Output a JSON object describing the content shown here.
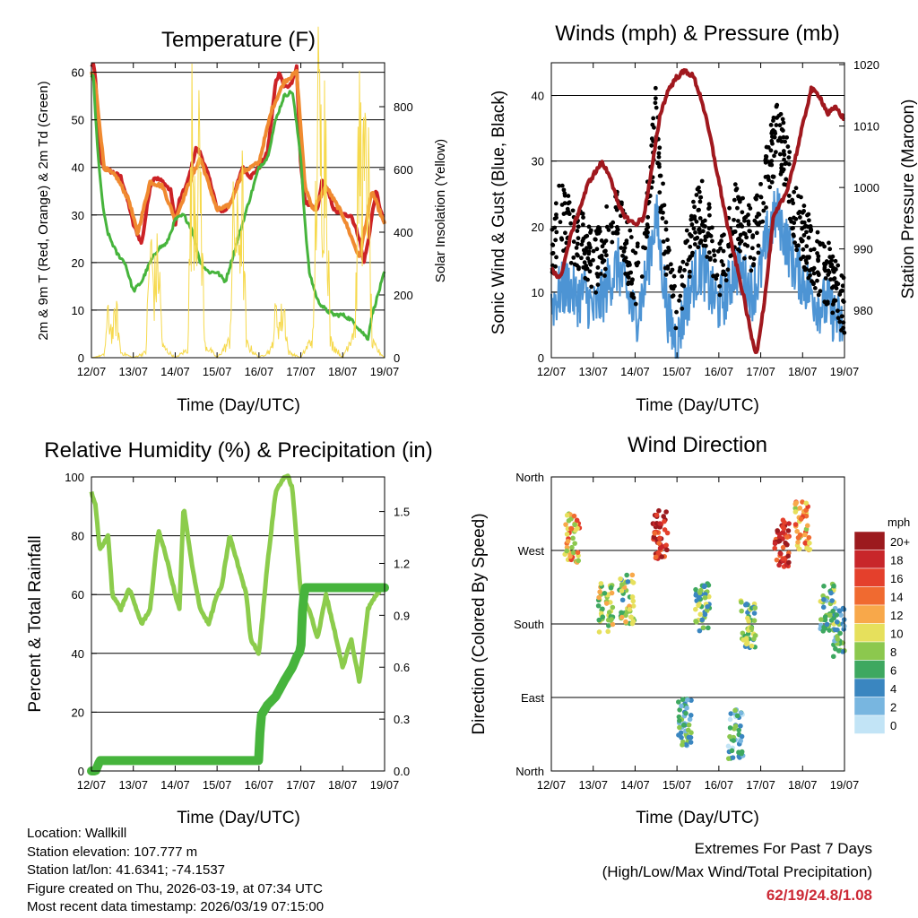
{
  "days": [
    "12/07",
    "13/07",
    "14/07",
    "15/07",
    "16/07",
    "17/07",
    "18/07",
    "19/07"
  ],
  "xlabel": "Time (Day/UTC)",
  "colors": {
    "red": "#cc2226",
    "orange": "#f08a30",
    "green": "#46b43c",
    "yellow": "#f6d94c",
    "blue": "#4d94d4",
    "black": "#000000",
    "maroon": "#a0181e",
    "lightgreen": "#8ccc4c"
  },
  "charts": [
    {
      "id": "temperature",
      "type": "line",
      "title": "Temperature (F)",
      "ylabel": "2m & 9m T (Red, Orange) & 2m Td (Green)",
      "y2label": "Solar Insolation (Yellow)",
      "ylim": [
        0,
        62
      ],
      "yticks": [
        0,
        10,
        20,
        30,
        40,
        50,
        60
      ],
      "y2lim": [
        0,
        940
      ],
      "y2ticks": [
        0,
        200,
        400,
        600,
        800
      ],
      "series": [
        {
          "name": "2m T",
          "color": "red",
          "x": [
            0,
            0.04,
            0.1,
            0.2,
            0.3,
            0.5,
            0.7,
            0.8,
            0.9,
            1.0,
            1.2,
            1.4,
            1.5,
            1.7,
            1.9,
            2.0,
            2.1,
            2.3,
            2.5,
            2.6,
            2.8,
            2.9,
            3.0,
            3.2,
            3.4,
            3.6,
            3.8,
            4.0,
            4.2,
            4.3,
            4.4,
            4.5,
            4.6,
            4.7,
            4.8,
            4.9,
            5.0,
            5.1,
            5.2,
            5.4,
            5.5,
            5.6,
            5.8,
            6.0,
            6.2,
            6.4,
            6.5,
            6.6,
            6.7,
            6.8,
            6.9,
            7.0
          ],
          "y": [
            61,
            62,
            58,
            42,
            40,
            39,
            38,
            35,
            32,
            28,
            24,
            36,
            38,
            37,
            35,
            28,
            33,
            37,
            44,
            43,
            38,
            35,
            31,
            31,
            34,
            40,
            38,
            40,
            43,
            50,
            58,
            60,
            57,
            57,
            58,
            61,
            40,
            33,
            32,
            31,
            37,
            36,
            31,
            30,
            30,
            25,
            20,
            24,
            30,
            35,
            31,
            28
          ]
        },
        {
          "name": "9m T",
          "color": "orange",
          "x": [
            0,
            0.1,
            0.3,
            0.6,
            0.9,
            1.1,
            1.4,
            1.7,
            2.0,
            2.3,
            2.6,
            3.0,
            3.3,
            3.6,
            4.0,
            4.3,
            4.6,
            4.9,
            5.1,
            5.3,
            5.6,
            6.0,
            6.4,
            6.7,
            7.0
          ],
          "y": [
            60,
            57,
            40,
            38,
            33,
            26,
            37,
            36,
            29,
            36,
            42,
            31,
            32,
            39,
            41,
            52,
            58,
            60,
            36,
            31,
            36,
            30,
            21,
            35,
            28
          ]
        },
        {
          "name": "2m Td",
          "color": "green",
          "x": [
            0,
            0.04,
            0.1,
            0.2,
            0.3,
            0.4,
            0.6,
            0.8,
            1.0,
            1.2,
            1.4,
            1.6,
            1.8,
            2.0,
            2.2,
            2.4,
            2.6,
            2.8,
            3.0,
            3.2,
            3.4,
            3.6,
            3.8,
            4.0,
            4.2,
            4.4,
            4.6,
            4.8,
            5.0,
            5.1,
            5.2,
            5.4,
            5.6,
            5.8,
            6.0,
            6.2,
            6.4,
            6.6,
            6.7,
            6.8,
            7.0
          ],
          "y": [
            59,
            60,
            50,
            38,
            30,
            26,
            22,
            20,
            14,
            16,
            20,
            23,
            24,
            29,
            30,
            27,
            20,
            18,
            18,
            16,
            22,
            28,
            34,
            40,
            42,
            50,
            55,
            56,
            42,
            28,
            18,
            12,
            10,
            9,
            9,
            8,
            6,
            4,
            9,
            12,
            18
          ]
        },
        {
          "name": "Solar Insolation",
          "color": "yellow",
          "axis": "y2",
          "x": [
            0,
            0.3,
            0.4,
            0.5,
            0.6,
            0.7,
            1.0,
            1.3,
            1.4,
            1.5,
            1.6,
            1.7,
            2.0,
            2.3,
            2.4,
            2.5,
            2.6,
            2.7,
            3.0,
            3.3,
            3.4,
            3.5,
            3.6,
            3.7,
            4.0,
            4.3,
            4.4,
            4.5,
            4.6,
            4.7,
            5.0,
            5.3,
            5.4,
            5.5,
            5.6,
            5.7,
            6.0,
            6.3,
            6.4,
            6.5,
            6.6,
            6.7,
            7.0
          ],
          "y": [
            0,
            10,
            150,
            90,
            160,
            20,
            0,
            20,
            400,
            250,
            350,
            40,
            0,
            30,
            760,
            620,
            700,
            50,
            0,
            60,
            520,
            400,
            560,
            50,
            0,
            30,
            160,
            120,
            180,
            20,
            0,
            80,
            900,
            700,
            850,
            60,
            0,
            120,
            800,
            620,
            700,
            50,
            0
          ]
        }
      ]
    },
    {
      "id": "winds",
      "type": "line+scatter",
      "title": "Winds (mph) & Pressure (mb)",
      "ylabel": "Sonic Wind & Gust (Blue, Black)",
      "y2label": "Station Pressure (Maroon)",
      "ylim": [
        0,
        45
      ],
      "yticks": [
        0,
        10,
        20,
        30,
        40
      ],
      "y2lim": [
        972.3,
        1020.3
      ],
      "y2ticks": [
        980,
        990,
        1000,
        1010,
        1020
      ],
      "series": [
        {
          "name": "Sonic Wind",
          "color": "blue",
          "x": [
            0,
            0.2,
            0.4,
            0.6,
            0.8,
            1.0,
            1.2,
            1.4,
            1.6,
            1.8,
            2.0,
            2.2,
            2.4,
            2.5,
            2.6,
            2.8,
            3.0,
            3.2,
            3.4,
            3.6,
            3.8,
            4.0,
            4.2,
            4.4,
            4.6,
            4.8,
            5.0,
            5.2,
            5.4,
            5.6,
            5.8,
            6.0,
            6.2,
            6.4,
            6.6,
            6.8,
            7.0
          ],
          "y": [
            8,
            10,
            11,
            9,
            10,
            7,
            9,
            12,
            14,
            10,
            6,
            10,
            18,
            22,
            16,
            6,
            2,
            8,
            12,
            14,
            10,
            8,
            10,
            14,
            12,
            10,
            13,
            20,
            22,
            18,
            14,
            12,
            10,
            8,
            8,
            6,
            4
          ]
        },
        {
          "name": "Gust",
          "color": "black",
          "x": [
            0,
            0.2,
            0.4,
            0.6,
            0.8,
            1.0,
            1.2,
            1.4,
            1.6,
            1.8,
            2.0,
            2.2,
            2.4,
            2.5,
            2.6,
            2.8,
            3.0,
            3.2,
            3.4,
            3.6,
            3.8,
            4.0,
            4.2,
            4.4,
            4.6,
            4.8,
            5.0,
            5.2,
            5.4,
            5.6,
            5.8,
            6.0,
            6.2,
            6.4,
            6.6,
            6.8,
            7.0
          ],
          "y": [
            15,
            22,
            20,
            18,
            17,
            14,
            16,
            20,
            22,
            17,
            11,
            17,
            30,
            38,
            27,
            12,
            6,
            14,
            20,
            22,
            18,
            14,
            17,
            22,
            20,
            18,
            22,
            30,
            34,
            30,
            22,
            19,
            16,
            14,
            13,
            11,
            8
          ]
        },
        {
          "name": "Station Pressure",
          "color": "maroon",
          "axis": "y2",
          "x": [
            0,
            0.2,
            0.5,
            0.9,
            1.2,
            1.4,
            1.6,
            1.8,
            2.0,
            2.2,
            2.4,
            2.6,
            2.8,
            3.0,
            3.2,
            3.4,
            3.6,
            3.8,
            4.0,
            4.2,
            4.4,
            4.6,
            4.8,
            4.9,
            5.1,
            5.3,
            5.6,
            5.8,
            6.0,
            6.2,
            6.4,
            6.6,
            6.8,
            7.0
          ],
          "y": [
            987,
            985,
            993,
            1001,
            1004,
            1002,
            997,
            995,
            994,
            995,
            1003,
            1012,
            1016,
            1018,
            1019,
            1018,
            1014,
            1008,
            1001,
            994,
            988,
            982,
            975,
            973,
            982,
            995,
            999,
            1004,
            1010,
            1016,
            1015,
            1012,
            1013,
            1011
          ]
        }
      ]
    },
    {
      "id": "humidity",
      "type": "line",
      "title": "Relative Humidity (%) & Precipitation (in)",
      "ylabel": "Percent & Total Rainfall",
      "ylim": [
        0,
        100
      ],
      "yticks": [
        0,
        20,
        40,
        60,
        80,
        100
      ],
      "y2lim": [
        0,
        1.7
      ],
      "y2ticks": [
        0.0,
        0.3,
        0.6,
        0.9,
        1.2,
        1.5
      ],
      "series": [
        {
          "name": "Relative Humidity",
          "color": "lightgreen",
          "x": [
            0,
            0.1,
            0.2,
            0.4,
            0.5,
            0.7,
            0.9,
            1.0,
            1.2,
            1.4,
            1.6,
            1.8,
            2.0,
            2.1,
            2.2,
            2.4,
            2.6,
            2.8,
            3.0,
            3.1,
            3.3,
            3.5,
            3.7,
            3.8,
            4.0,
            4.2,
            4.4,
            4.6,
            4.7,
            4.8,
            5.0,
            5.2,
            5.4,
            5.6,
            5.8,
            6.0,
            6.2,
            6.4,
            6.6,
            6.8,
            7.0
          ],
          "y": [
            95,
            90,
            75,
            80,
            60,
            55,
            62,
            58,
            50,
            55,
            82,
            72,
            60,
            55,
            90,
            70,
            55,
            50,
            60,
            62,
            80,
            70,
            60,
            45,
            40,
            70,
            95,
            100,
            100,
            96,
            60,
            55,
            45,
            60,
            48,
            35,
            45,
            30,
            55,
            60,
            63
          ]
        },
        {
          "name": "Total Rainfall",
          "color": "green",
          "axis": "y2",
          "x": [
            0,
            0.1,
            0.2,
            0.4,
            1,
            2,
            3,
            4,
            4.0,
            4.05,
            4.2,
            4.4,
            4.6,
            4.8,
            4.9,
            5.0,
            5.05,
            5.1,
            5.5,
            6,
            6.5,
            7.0
          ],
          "y": [
            0,
            0,
            0.06,
            0.06,
            0.06,
            0.06,
            0.06,
            0.06,
            0.12,
            0.32,
            0.38,
            0.43,
            0.52,
            0.6,
            0.66,
            0.7,
            0.98,
            1.06,
            1.06,
            1.06,
            1.06,
            1.06
          ]
        }
      ]
    },
    {
      "id": "direction",
      "type": "scatter",
      "title": "Wind Direction",
      "ylabel": "Direction (Colored By Speed)",
      "yticks": [
        "North",
        "East",
        "South",
        "West",
        "North"
      ],
      "clusters": [
        {
          "x": 0.5,
          "dir": 285,
          "speed": 12
        },
        {
          "x": 1.3,
          "dir": 200,
          "speed": 9
        },
        {
          "x": 1.8,
          "dir": 210,
          "speed": 8
        },
        {
          "x": 2.6,
          "dir": 290,
          "speed": 18
        },
        {
          "x": 3.2,
          "dir": 60,
          "speed": 5
        },
        {
          "x": 3.6,
          "dir": 200,
          "speed": 7
        },
        {
          "x": 4.4,
          "dir": 45,
          "speed": 4
        },
        {
          "x": 4.7,
          "dir": 180,
          "speed": 7
        },
        {
          "x": 5.5,
          "dir": 280,
          "speed": 18
        },
        {
          "x": 6.0,
          "dir": 300,
          "speed": 12
        },
        {
          "x": 6.6,
          "dir": 200,
          "speed": 6
        },
        {
          "x": 6.9,
          "dir": 170,
          "speed": 5
        }
      ],
      "legend": {
        "title": "mph",
        "labels": [
          "20+",
          "18",
          "16",
          "14",
          "12",
          "10",
          "8",
          "6",
          "4",
          "2",
          "0"
        ],
        "colors": [
          "#9c1a1e",
          "#c8262a",
          "#e4402c",
          "#f06a30",
          "#f8a84a",
          "#e6e05c",
          "#8cc84e",
          "#3ea860",
          "#3a86c0",
          "#78b6e0",
          "#c2e4f6"
        ]
      }
    }
  ],
  "info": {
    "location": "Location: Wallkill",
    "elevation": "Station elevation: 107.777 m",
    "latlon": "Station lat/lon: 41.6341; -74.1537",
    "created": "Figure created on Thu, 2026-03-19, at 07:34 UTC",
    "recent": "Most recent data timestamp: 2026/03/19 07:15:00"
  },
  "extremes": {
    "heading": "Extremes For Past 7 Days",
    "subheading": "(High/Low/Max Wind/Total Precipitation)",
    "values": "62/19/24.8/1.08"
  }
}
